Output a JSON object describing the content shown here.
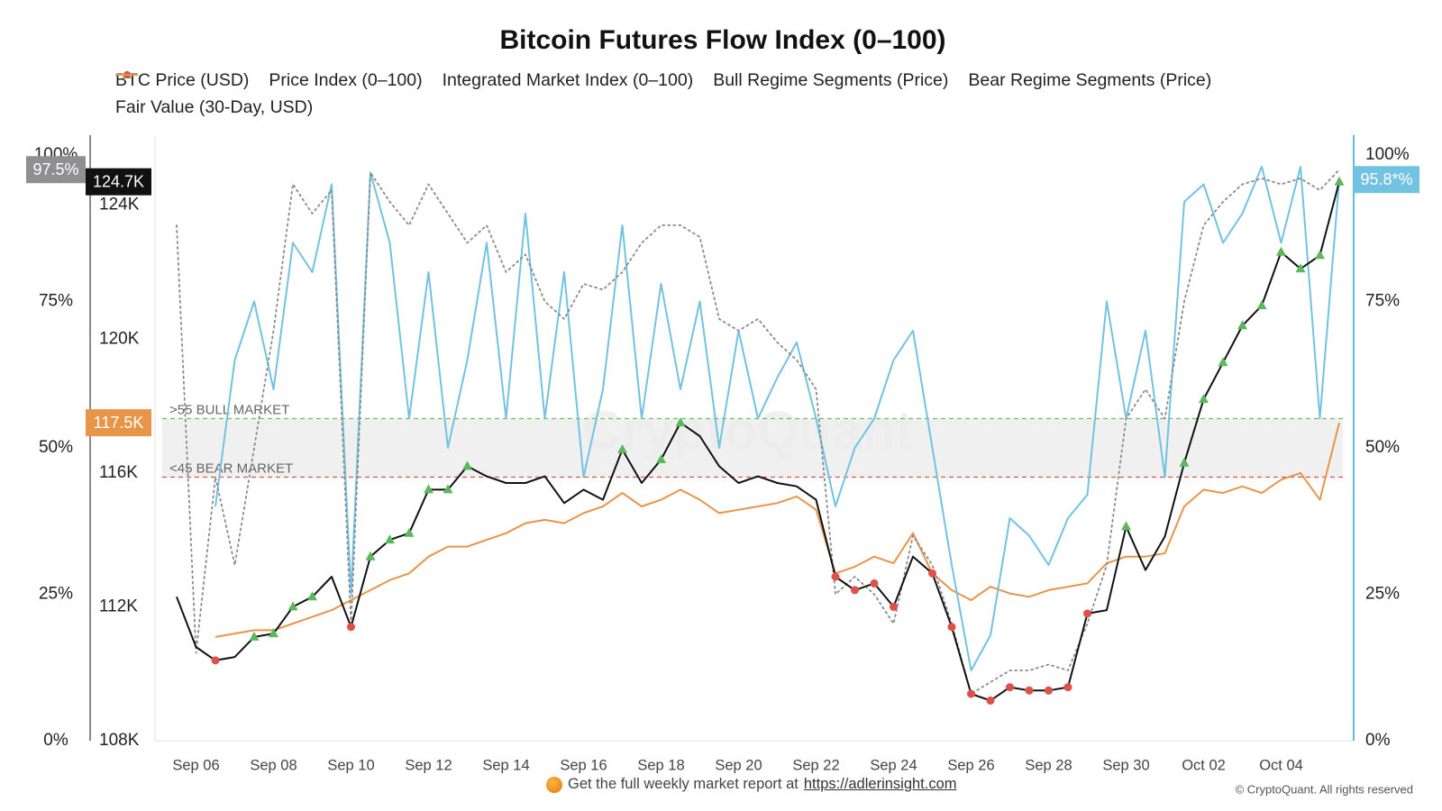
{
  "chart_data": {
    "type": "line",
    "title": "Bitcoin Futures Flow Index (0–100)",
    "watermark": "CryptoQuant",
    "footer_text": "Get the full weekly market report at",
    "footer_link": "https://adlerinsight.com",
    "copyright": "© CryptoQuant. All rights reserved",
    "categories": [
      null,
      "Sep 06",
      null,
      null,
      null,
      "Sep 08",
      null,
      null,
      null,
      "Sep 10",
      null,
      null,
      null,
      "Sep 12",
      null,
      null,
      null,
      "Sep 14",
      null,
      null,
      null,
      "Sep 16",
      null,
      null,
      null,
      "Sep 18",
      null,
      null,
      null,
      "Sep 20",
      null,
      null,
      null,
      "Sep 22",
      null,
      null,
      null,
      "Sep 24",
      null,
      null,
      null,
      "Sep 26",
      null,
      null,
      null,
      "Sep 28",
      null,
      null,
      null,
      "Sep 30",
      null,
      null,
      null,
      "Oct 02",
      null,
      null,
      null,
      "Oct 04",
      null,
      null,
      null
    ],
    "ylim": [
      108000,
      125500
    ],
    "yticks": [
      {
        "value": 108000,
        "label": "108K"
      },
      {
        "value": 112000,
        "label": "112K"
      },
      {
        "value": 116000,
        "label": "116K"
      },
      {
        "value": 120000,
        "label": "120K"
      },
      {
        "value": 124000,
        "label": "124K"
      }
    ],
    "y2lim": [
      0,
      100
    ],
    "y2ticks": [
      {
        "value": 0,
        "label": "0%"
      },
      {
        "value": 25,
        "label": "25%"
      },
      {
        "value": 50,
        "label": "50%"
      },
      {
        "value": 75,
        "label": "75%"
      },
      {
        "value": 100,
        "label": "100%"
      }
    ],
    "thresholds": [
      {
        "value": 55,
        "label": ">55 BULL MARKET",
        "color": "#6cbf5a"
      },
      {
        "value": 45,
        "label": "<45 BEAR MARKET",
        "color": "#d9534f"
      }
    ],
    "series": [
      {
        "name": "BTC Price (USD)",
        "color": "#111111",
        "end_label": "124.7K",
        "values": [
          112300,
          110800,
          110400,
          110500,
          111100,
          111200,
          112000,
          112300,
          112900,
          111400,
          113500,
          114000,
          114200,
          115500,
          115500,
          116200,
          115900,
          115700,
          115700,
          115900,
          115100,
          115500,
          115200,
          116700,
          115700,
          116400,
          117500,
          117100,
          116200,
          115700,
          115900,
          115700,
          115600,
          115200,
          112900,
          112500,
          112700,
          112000,
          113500,
          113000,
          111400,
          109400,
          109200,
          109600,
          109500,
          109500,
          109600,
          111800,
          111900,
          114400,
          113100,
          114100,
          116300,
          118200,
          119300,
          120400,
          121000,
          122600,
          122100,
          122500,
          124700
        ]
      },
      {
        "name": "Price Index (0–100)",
        "color": "#8a8a8a",
        "dash": "dotted",
        "axis": "y2",
        "end_label": "97.5%",
        "values": [
          88,
          15,
          45,
          30,
          50,
          70,
          95,
          90,
          94,
          20,
          97,
          92,
          88,
          95,
          90,
          85,
          88,
          80,
          83,
          75,
          72,
          78,
          77,
          80,
          85,
          88,
          88,
          86,
          72,
          70,
          72,
          68,
          65,
          60,
          25,
          28,
          25,
          20,
          35,
          30,
          20,
          8,
          10,
          12,
          12,
          13,
          12,
          20,
          30,
          55,
          60,
          55,
          75,
          88,
          92,
          95,
          96,
          95,
          96,
          94,
          97.5
        ]
      },
      {
        "name": "Integrated Market Index (0–100)",
        "color": "#72c2e2",
        "axis": "y2",
        "end_label": "95.8*%",
        "values": [
          null,
          null,
          40,
          65,
          75,
          60,
          85,
          80,
          95,
          25,
          97,
          85,
          55,
          80,
          50,
          65,
          85,
          55,
          90,
          55,
          80,
          45,
          60,
          88,
          55,
          78,
          60,
          75,
          50,
          70,
          55,
          62,
          68,
          55,
          40,
          50,
          55,
          65,
          70,
          50,
          30,
          12,
          18,
          38,
          35,
          30,
          38,
          42,
          75,
          55,
          70,
          45,
          92,
          95,
          85,
          90,
          98,
          85,
          98,
          55,
          95.8
        ]
      },
      {
        "name": "Bull Regime Segments (Price)",
        "color": "#5cb85c",
        "marker": "triangle",
        "values": [
          null,
          null,
          null,
          null,
          111100,
          111200,
          112000,
          112300,
          null,
          null,
          113500,
          114000,
          114200,
          115500,
          115500,
          116200,
          null,
          null,
          null,
          null,
          null,
          null,
          null,
          116700,
          null,
          116400,
          117500,
          null,
          null,
          null,
          null,
          null,
          null,
          null,
          null,
          null,
          null,
          null,
          null,
          null,
          null,
          null,
          null,
          null,
          null,
          null,
          null,
          null,
          null,
          114400,
          null,
          null,
          116300,
          118200,
          119300,
          120400,
          121000,
          122600,
          122100,
          122500,
          124700
        ]
      },
      {
        "name": "Bear Regime Segments (Price)",
        "color": "#e0504a",
        "marker": "circle",
        "values": [
          null,
          null,
          110400,
          null,
          null,
          null,
          null,
          null,
          null,
          111400,
          null,
          null,
          null,
          null,
          null,
          null,
          null,
          null,
          null,
          null,
          null,
          null,
          null,
          null,
          null,
          null,
          null,
          null,
          null,
          null,
          null,
          null,
          null,
          null,
          112900,
          112500,
          112700,
          112000,
          null,
          113000,
          111400,
          109400,
          109200,
          109600,
          109500,
          109500,
          109600,
          111800,
          null,
          null,
          null,
          null,
          null,
          null,
          null,
          null,
          null,
          null,
          null,
          null,
          null
        ]
      },
      {
        "name": "Fair Value (30-Day, USD)",
        "color": "#e8954a",
        "end_label": "117.5K",
        "values": [
          null,
          null,
          111100,
          111200,
          111300,
          111300,
          111500,
          111700,
          111900,
          112200,
          112500,
          112800,
          113000,
          113500,
          113800,
          113800,
          114000,
          114200,
          114500,
          114600,
          114500,
          114800,
          115000,
          115400,
          115000,
          115200,
          115500,
          115200,
          114800,
          114900,
          115000,
          115100,
          115300,
          114900,
          113000,
          113200,
          113500,
          113300,
          114200,
          113000,
          112500,
          112200,
          112600,
          112400,
          112300,
          112500,
          112600,
          112700,
          113300,
          113500,
          113500,
          113600,
          115000,
          115500,
          115400,
          115600,
          115400,
          115800,
          116000,
          115200,
          117500
        ]
      }
    ]
  }
}
